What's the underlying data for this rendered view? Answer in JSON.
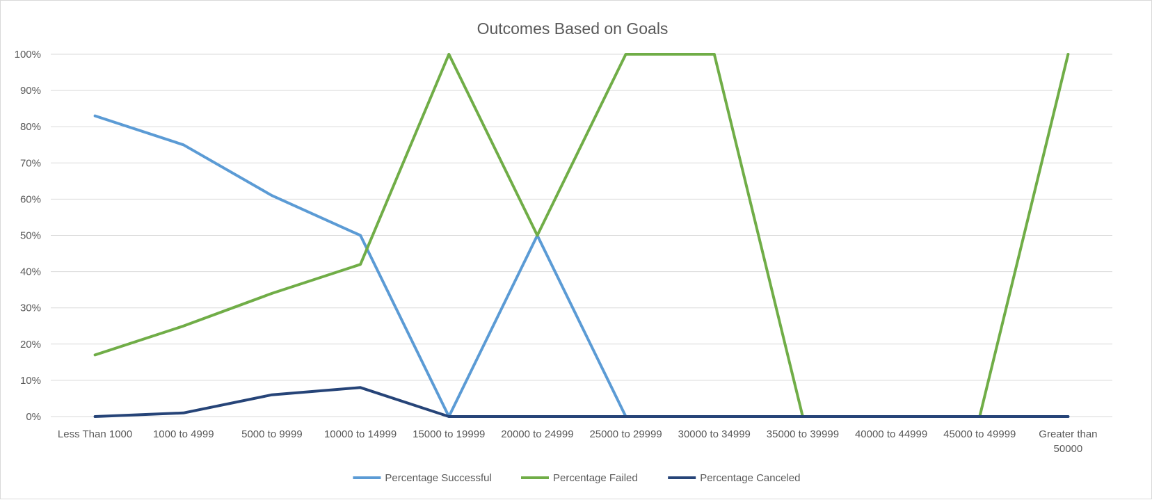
{
  "chart_data": {
    "type": "line",
    "title": "Outcomes Based on Goals",
    "xlabel": "",
    "ylabel": "",
    "ylim": [
      0,
      1
    ],
    "yticks": [
      "0%",
      "10%",
      "20%",
      "30%",
      "40%",
      "50%",
      "60%",
      "70%",
      "80%",
      "90%",
      "100%"
    ],
    "grid": true,
    "legend_position": "bottom",
    "categories": [
      "Less Than 1000",
      "1000 to 4999",
      "5000 to 9999",
      "10000 to 14999",
      "15000 to 19999",
      "20000 to 24999",
      "25000 to 29999",
      "30000 to 34999",
      "35000 to 39999",
      "40000 to 44999",
      "45000 to 49999",
      "Greater than 50000"
    ],
    "series": [
      {
        "name": "Percentage Successful",
        "color": "#5b9bd5",
        "values": [
          0.83,
          0.75,
          0.61,
          0.5,
          0.0,
          0.5,
          0.0,
          0.0,
          0.0,
          0.0,
          0.0,
          0.0
        ]
      },
      {
        "name": "Percentage Failed",
        "color": "#70ad47",
        "values": [
          0.17,
          0.25,
          0.34,
          0.42,
          1.0,
          0.5,
          1.0,
          1.0,
          0.0,
          0.0,
          0.0,
          1.0
        ]
      },
      {
        "name": "Percentage Canceled",
        "color": "#264478",
        "values": [
          0.0,
          0.01,
          0.06,
          0.08,
          0.0,
          0.0,
          0.0,
          0.0,
          0.0,
          0.0,
          0.0,
          0.0
        ]
      }
    ]
  }
}
